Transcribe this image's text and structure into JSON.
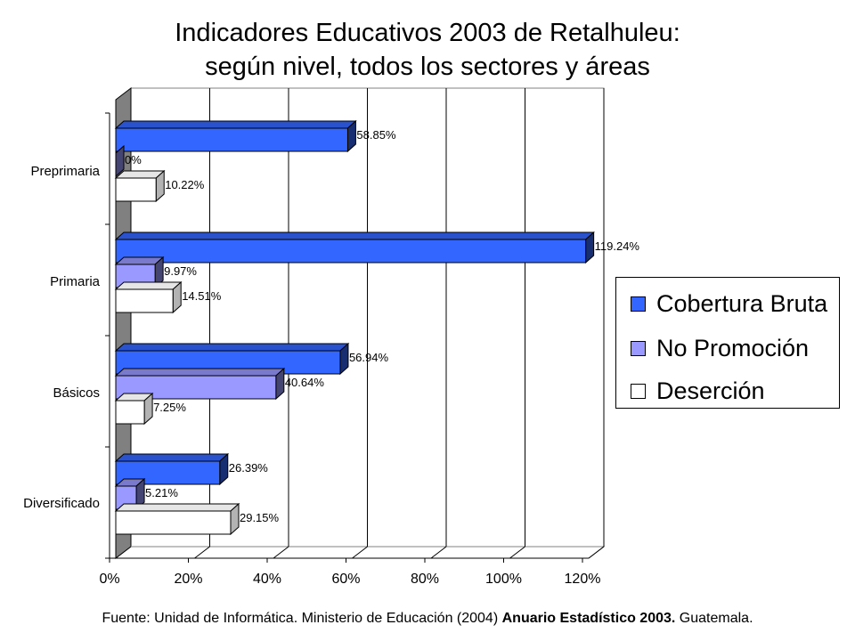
{
  "title": {
    "line1": "Indicadores Educativos 2003 de Retalhuleu:",
    "line2": "según nivel, todos los sectores y áreas"
  },
  "source": {
    "prefix": "Fuente: Unidad de Informática. Ministerio de Educación (2004)",
    "bold": "Anuario Estadístico 2003.",
    "suffix": "Guatemala."
  },
  "chart_data": {
    "type": "bar",
    "orientation": "horizontal",
    "style": "3d",
    "categories": [
      "Preprimaria",
      "Primaria",
      "Básicos",
      "Diversificado"
    ],
    "series": [
      {
        "name": "Cobertura Bruta",
        "values": [
          58.85,
          119.24,
          56.94,
          26.39
        ],
        "labels": [
          "58.85%",
          "119.24%",
          "56.94%",
          "26.39%"
        ],
        "color": "#3366ff"
      },
      {
        "name": "No Promoción",
        "values": [
          0,
          9.97,
          40.64,
          5.21
        ],
        "labels": [
          "0%",
          "9.97%",
          "40.64%",
          "5.21%"
        ],
        "color": "#9999ff"
      },
      {
        "name": "Deserción",
        "values": [
          10.22,
          14.51,
          7.25,
          29.15
        ],
        "labels": [
          "10.22%",
          "14.51%",
          "7.25%",
          "29.15%"
        ],
        "color": "#ffffff"
      }
    ],
    "xlim": [
      0,
      120
    ],
    "xticks": [
      "0%",
      "20%",
      "40%",
      "60%",
      "80%",
      "100%",
      "120%"
    ],
    "grid": true,
    "legend_position": "right"
  }
}
